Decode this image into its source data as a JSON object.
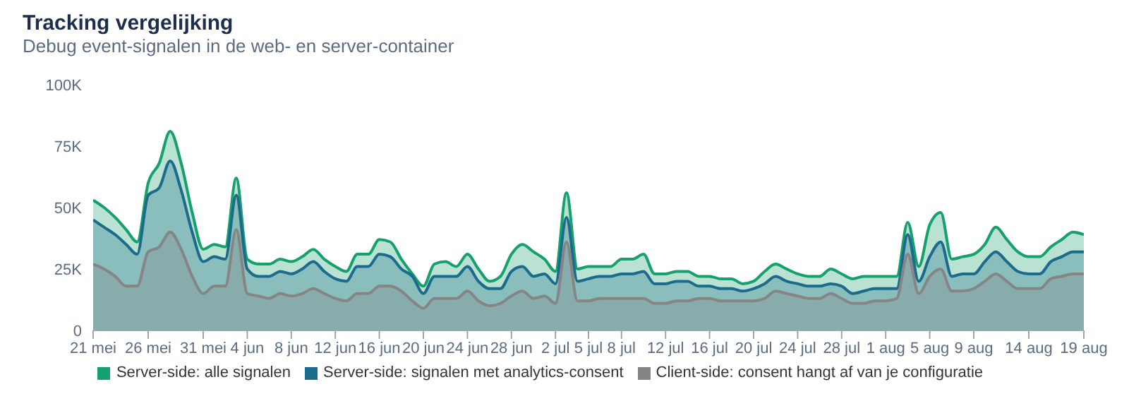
{
  "chart_data": {
    "type": "area",
    "title": "Tracking vergelijking",
    "subtitle": "Debug event-signalen in de web- en server-container",
    "x": [
      "--05-21",
      "--05-22",
      "--05-23",
      "--05-24",
      "--05-25",
      "--05-26",
      "--05-27",
      "--05-28",
      "--05-29",
      "--05-30",
      "--05-31",
      "--06-01",
      "--06-02",
      "--06-03",
      "--06-04",
      "--06-05",
      "--06-06",
      "--06-07",
      "--06-08",
      "--06-09",
      "--06-10",
      "--06-11",
      "--06-12",
      "--06-13",
      "--06-14",
      "--06-15",
      "--06-16",
      "--06-17",
      "--06-18",
      "--06-19",
      "--06-20",
      "--06-21",
      "--06-22",
      "--06-23",
      "--06-24",
      "--06-25",
      "--06-26",
      "--06-27",
      "--06-28",
      "--06-29",
      "--06-30",
      "--07-01",
      "--07-02",
      "--07-03",
      "--07-04",
      "--07-05",
      "--07-06",
      "--07-07",
      "--07-08",
      "--07-09",
      "--07-10",
      "--07-11",
      "--07-12",
      "--07-13",
      "--07-14",
      "--07-15",
      "--07-16",
      "--07-17",
      "--07-18",
      "--07-19",
      "--07-20",
      "--07-21",
      "--07-22",
      "--07-23",
      "--07-24",
      "--07-25",
      "--07-26",
      "--07-27",
      "--07-28",
      "--07-29",
      "--07-30",
      "--07-31",
      "--08-01",
      "--08-02",
      "--08-03",
      "--08-04",
      "--08-05",
      "--08-06",
      "--08-07",
      "--08-08",
      "--08-09",
      "--08-10",
      "--08-11",
      "--08-12",
      "--08-13",
      "--08-14",
      "--08-15",
      "--08-16",
      "--08-17",
      "--08-18",
      "--08-19"
    ],
    "series": [
      {
        "name": "Server-side: alle signalen",
        "color": "#16a06c",
        "values": [
          53000,
          50000,
          46000,
          41000,
          36000,
          60000,
          68000,
          81000,
          68000,
          48000,
          33000,
          35000,
          34000,
          62000,
          29000,
          27000,
          27000,
          29000,
          28000,
          30000,
          33000,
          29000,
          26000,
          24000,
          31000,
          31000,
          37000,
          36000,
          29000,
          23000,
          18000,
          27000,
          28000,
          26000,
          31000,
          25000,
          20000,
          22000,
          31000,
          35000,
          32000,
          29000,
          24000,
          56000,
          25000,
          26000,
          26000,
          26000,
          29000,
          29000,
          31000,
          23000,
          23000,
          24000,
          24000,
          22000,
          22000,
          21000,
          21000,
          19000,
          20000,
          24000,
          27000,
          25000,
          23000,
          22000,
          22000,
          25000,
          23000,
          21000,
          22000,
          22000,
          22000,
          22000,
          44000,
          26000,
          43000,
          48000,
          29000,
          30000,
          31000,
          35000,
          42000,
          37000,
          32000,
          30000,
          30000,
          34000,
          37000,
          40000,
          39000
        ]
      },
      {
        "name": "Server-side: signalen met analytics-consent",
        "color": "#1d6b8c",
        "values": [
          45000,
          42000,
          39000,
          35000,
          31000,
          55000,
          58000,
          69000,
          57000,
          40000,
          28000,
          30000,
          29000,
          55000,
          25000,
          22000,
          22000,
          24000,
          23000,
          25000,
          28000,
          24000,
          21000,
          20000,
          26000,
          26000,
          31000,
          30000,
          25000,
          22000,
          15000,
          22000,
          22000,
          22000,
          26000,
          20000,
          17000,
          17000,
          24000,
          26000,
          22000,
          23000,
          19000,
          46000,
          20000,
          21000,
          22000,
          22000,
          23000,
          23000,
          24000,
          19000,
          19000,
          20000,
          20000,
          18000,
          18000,
          17000,
          17000,
          16000,
          17000,
          19000,
          22000,
          20000,
          19000,
          18000,
          18000,
          19000,
          18000,
          15000,
          16000,
          17000,
          17000,
          17000,
          39000,
          20000,
          30000,
          36000,
          22000,
          23000,
          23000,
          28000,
          32000,
          28000,
          24000,
          23000,
          23000,
          28000,
          30000,
          32000,
          32000
        ]
      },
      {
        "name": "Client-side: consent hangt af van je configuratie",
        "color": "#858585",
        "values": [
          27000,
          25000,
          22000,
          18000,
          18000,
          32000,
          34000,
          40000,
          33000,
          22000,
          15000,
          18000,
          18000,
          41000,
          15000,
          14000,
          13000,
          15000,
          14000,
          15000,
          17000,
          15000,
          13000,
          12000,
          15000,
          15000,
          18000,
          18000,
          16000,
          12000,
          9000,
          13000,
          13000,
          13000,
          16000,
          12000,
          10000,
          11000,
          14000,
          16000,
          13000,
          14000,
          11000,
          36000,
          12000,
          12000,
          13000,
          13000,
          13000,
          13000,
          13000,
          11000,
          11000,
          12000,
          12000,
          13000,
          13000,
          12000,
          12000,
          12000,
          12000,
          13000,
          16000,
          15000,
          14000,
          13000,
          13000,
          15000,
          13000,
          11000,
          11000,
          12000,
          12000,
          13000,
          31000,
          15000,
          22000,
          25000,
          16000,
          16000,
          17000,
          20000,
          23000,
          20000,
          17000,
          17000,
          17000,
          21000,
          22000,
          23000,
          23000
        ]
      }
    ],
    "xlim": [
      "--05-21",
      "--08-19"
    ],
    "xticks": [
      {
        "value": "--05-21",
        "label": "21 mei"
      },
      {
        "value": "--05-26",
        "label": "26 mei"
      },
      {
        "value": "--05-31",
        "label": "31 mei"
      },
      {
        "value": "--06-04",
        "label": "4 jun"
      },
      {
        "value": "--06-08",
        "label": "8 jun"
      },
      {
        "value": "--06-12",
        "label": "12 jun"
      },
      {
        "value": "--06-16",
        "label": "16 jun"
      },
      {
        "value": "--06-20",
        "label": "20 jun"
      },
      {
        "value": "--06-24",
        "label": "24 jun"
      },
      {
        "value": "--06-28",
        "label": "28 jun"
      },
      {
        "value": "--07-02",
        "label": "2 jul"
      },
      {
        "value": "--07-05",
        "label": "5 jul"
      },
      {
        "value": "--07-08",
        "label": "8 jul"
      },
      {
        "value": "--07-12",
        "label": "12 jul"
      },
      {
        "value": "--07-16",
        "label": "16 jul"
      },
      {
        "value": "--07-20",
        "label": "20 jul"
      },
      {
        "value": "--07-24",
        "label": "24 jul"
      },
      {
        "value": "--07-28",
        "label": "28 jul"
      },
      {
        "value": "--08-01",
        "label": "1 aug"
      },
      {
        "value": "--08-05",
        "label": "5 aug"
      },
      {
        "value": "--08-09",
        "label": "9 aug"
      },
      {
        "value": "--08-14",
        "label": "14 aug"
      },
      {
        "value": "--08-19",
        "label": "19 aug"
      }
    ],
    "ylim": [
      0,
      100000
    ],
    "yticks": [
      0,
      {
        "value": 25000,
        "label": "25K"
      },
      {
        "value": 50000,
        "label": "50K"
      },
      {
        "value": 75000,
        "label": "75K"
      },
      {
        "value": 100000,
        "label": "100K"
      }
    ],
    "grid": false,
    "legend": "bottom",
    "marker": "none",
    "line_style": "solid"
  }
}
